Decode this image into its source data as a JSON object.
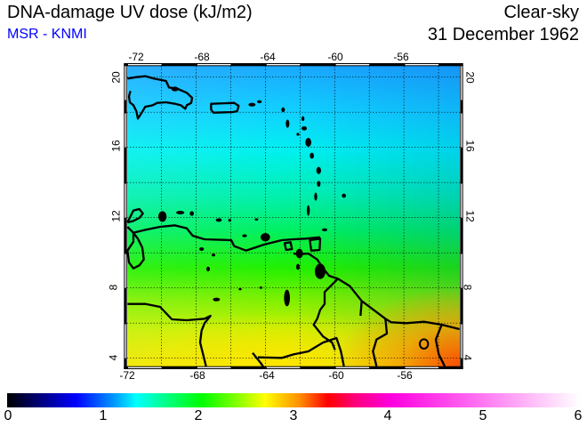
{
  "header": {
    "title": "DNA-damage UV dose (kJ/m2)",
    "credit": "MSR - KNMI",
    "condition": "Clear-sky",
    "date": "31 December 1962"
  },
  "map": {
    "lon_ticks": [
      "-72",
      "-68",
      "-64",
      "-60",
      "-56"
    ],
    "lat_ticks": [
      "20",
      "16",
      "12",
      "8",
      "4"
    ],
    "region": "Caribbean / northern South America"
  },
  "colorbar": {
    "labels": [
      "0",
      "1",
      "2",
      "3",
      "4",
      "5",
      "6"
    ],
    "min": 0,
    "max": 6,
    "unit": "kJ/m2"
  }
}
